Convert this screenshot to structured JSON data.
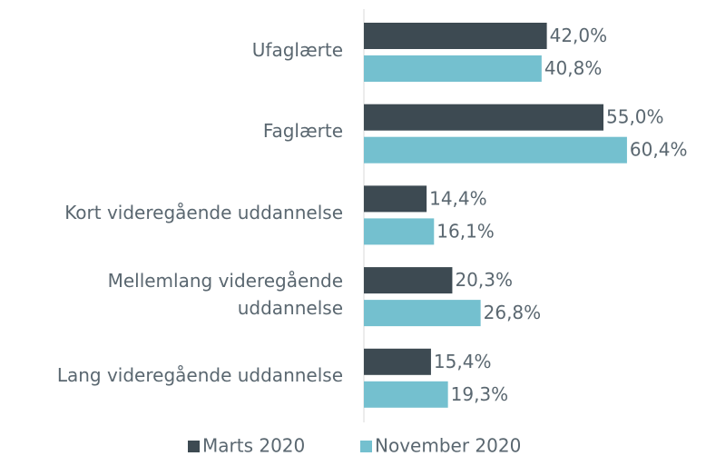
{
  "chart_data": {
    "type": "barh",
    "categories": [
      "Ufaglærte",
      "Faglærte",
      "Kort videregående uddannelse",
      "Mellemlang videregående uddannelse",
      "Lang videregående uddannelse"
    ],
    "series": [
      {
        "name": "Marts 2020",
        "color": "#3d4a52",
        "values": [
          42.0,
          55.0,
          14.4,
          20.3,
          15.4
        ],
        "value_labels": [
          "42,0%",
          "55,0%",
          "14,4%",
          "20,3%",
          "15,4%"
        ]
      },
      {
        "name": "November 2020",
        "color": "#74c0cf",
        "values": [
          40.8,
          60.4,
          16.1,
          26.8,
          19.3
        ],
        "value_labels": [
          "40,8%",
          "60,4%",
          "16,1%",
          "26,8%",
          "19,3%"
        ]
      }
    ],
    "xlim": [
      0,
      70
    ],
    "legend": "bottom"
  }
}
